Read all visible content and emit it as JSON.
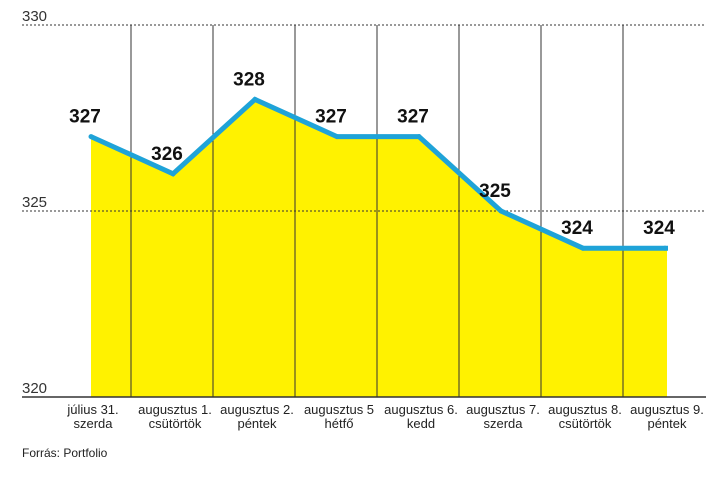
{
  "chart_data": {
    "type": "area",
    "title": "",
    "xlabel": "",
    "ylabel": "",
    "ylim": [
      320,
      330
    ],
    "yticks": [
      "320",
      "325",
      "330"
    ],
    "grid": true,
    "categories": [
      [
        "július 31.",
        "szerda"
      ],
      [
        "augusztus 1.",
        "csütörtök"
      ],
      [
        "augusztus 2.",
        "péntek"
      ],
      [
        "augusztus 5",
        "hétfő"
      ],
      [
        "augusztus 6.",
        "kedd"
      ],
      [
        "augusztus 7.",
        "szerda"
      ],
      [
        "augusztus 8.",
        "csütörtök"
      ],
      [
        "augusztus 9.",
        "péntek"
      ]
    ],
    "values": [
      327,
      326,
      328,
      327,
      327,
      325,
      324,
      324
    ],
    "labels": [
      "327",
      "326",
      "328",
      "327",
      "327",
      "325",
      "324",
      "324"
    ],
    "colors": {
      "fill": "#fff200",
      "line": "#1fa3d8",
      "grid": "#333333"
    }
  },
  "source": "Forrás: Portfolio"
}
